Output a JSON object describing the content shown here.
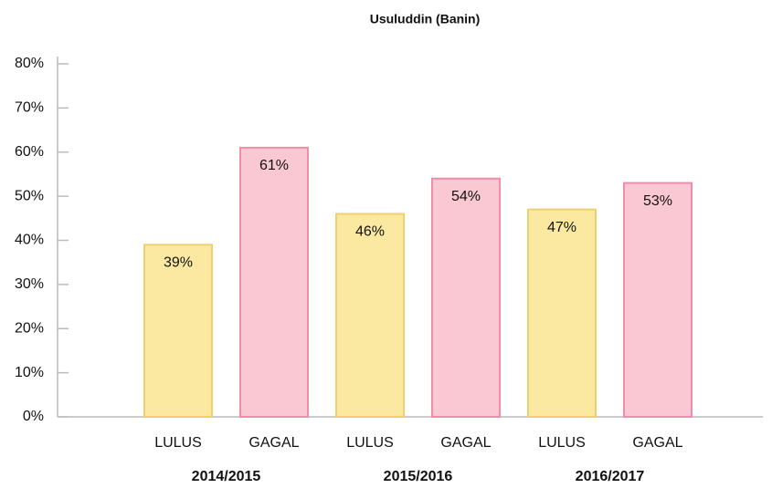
{
  "chart_data": {
    "type": "bar",
    "title": "Usuluddin (Banin)",
    "categories": [
      "LULUS",
      "GAGAL",
      "LULUS",
      "GAGAL",
      "LULUS",
      "GAGAL"
    ],
    "groups": [
      "2014/2015",
      "2015/2016",
      "2016/2017"
    ],
    "values": [
      39,
      61,
      46,
      54,
      47,
      53
    ],
    "value_labels": [
      "39%",
      "61%",
      "46%",
      "54%",
      "47%",
      "53%"
    ],
    "colors": [
      "#fbe9a2",
      "#fac8d2",
      "#fbe9a2",
      "#fac8d2",
      "#fbe9a2",
      "#fac8d2"
    ],
    "border_colors": [
      "#efcf6e",
      "#ef8ea6",
      "#efcf6e",
      "#ef8ea6",
      "#efcf6e",
      "#ef8ea6"
    ],
    "ylim": [
      0,
      80
    ],
    "yticks": [
      {
        "value": 0,
        "label": "0%"
      },
      {
        "value": 10,
        "label": "10%"
      },
      {
        "value": 20,
        "label": "20%"
      },
      {
        "value": 30,
        "label": "30%"
      },
      {
        "value": 40,
        "label": "40%"
      },
      {
        "value": 50,
        "label": "50%"
      },
      {
        "value": 60,
        "label": "60%"
      },
      {
        "value": 70,
        "label": "70%"
      },
      {
        "value": 80,
        "label": "80%"
      }
    ]
  }
}
